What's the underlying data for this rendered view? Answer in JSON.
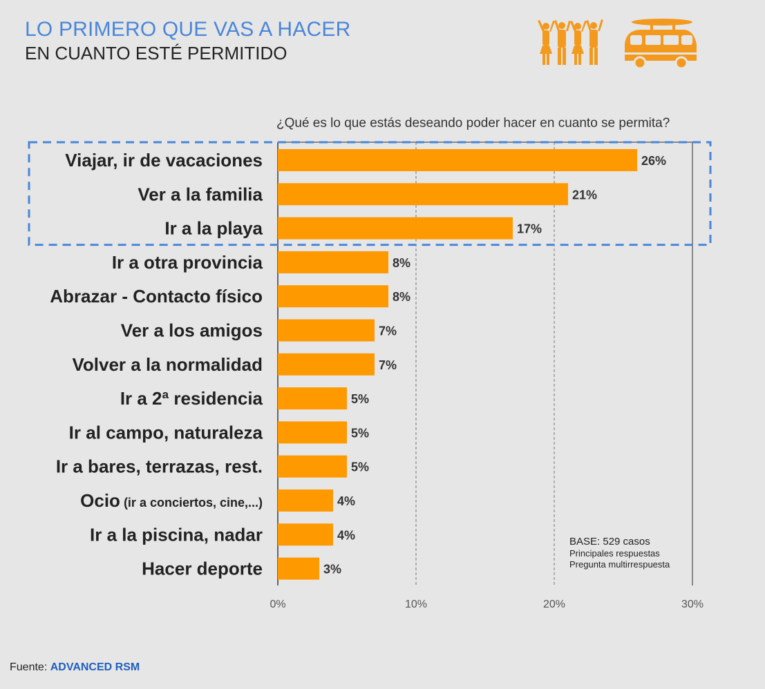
{
  "header": {
    "title_line1": "LO PRIMERO QUE VAS A HACER",
    "title_line2": "EN CUANTO ESTÉ PERMITIDO"
  },
  "icons": [
    "people-celebrating-icon",
    "van-with-surfboard-icon"
  ],
  "chart_data": {
    "type": "bar",
    "orientation": "horizontal",
    "title": "¿Qué es lo que estás deseando poder hacer en cuanto se permita?",
    "categories": [
      "Viajar, ir de vacaciones",
      "Ver a la familia",
      "Ir a la playa",
      "Ir a otra provincia",
      "Abrazar - Contacto físico",
      "Ver a los amigos",
      "Volver a la normalidad",
      "Ir a 2ª residencia",
      "Ir al campo, naturaleza",
      "Ir a bares, terrazas, rest.",
      "Ocio",
      "Ir a la piscina, nadar",
      "Hacer deporte"
    ],
    "category_suffix": {
      "10": "(ir a conciertos, cine,...)"
    },
    "values": [
      26,
      21,
      17,
      8,
      8,
      7,
      7,
      5,
      5,
      5,
      4,
      4,
      3
    ],
    "value_labels": [
      "26%",
      "21%",
      "17%",
      "8%",
      "8%",
      "7%",
      "7%",
      "5%",
      "5%",
      "5%",
      "4%",
      "4%",
      "3%"
    ],
    "xlim": [
      0,
      30
    ],
    "xticks": [
      "0%",
      "10%",
      "20%",
      "30%"
    ],
    "highlighted_categories": [
      0,
      1,
      2
    ],
    "grid": "vertical dashed",
    "colors": {
      "bar": "#ff9900",
      "highlight_box": "#4a86d8",
      "accent_title": "#4a86d8"
    }
  },
  "notes": {
    "base": "BASE: 529 casos",
    "line2": "Principales respuestas",
    "line3": "Pregunta multirrespuesta"
  },
  "source": {
    "label": "Fuente:",
    "brand": "ADVANCED RSM"
  }
}
